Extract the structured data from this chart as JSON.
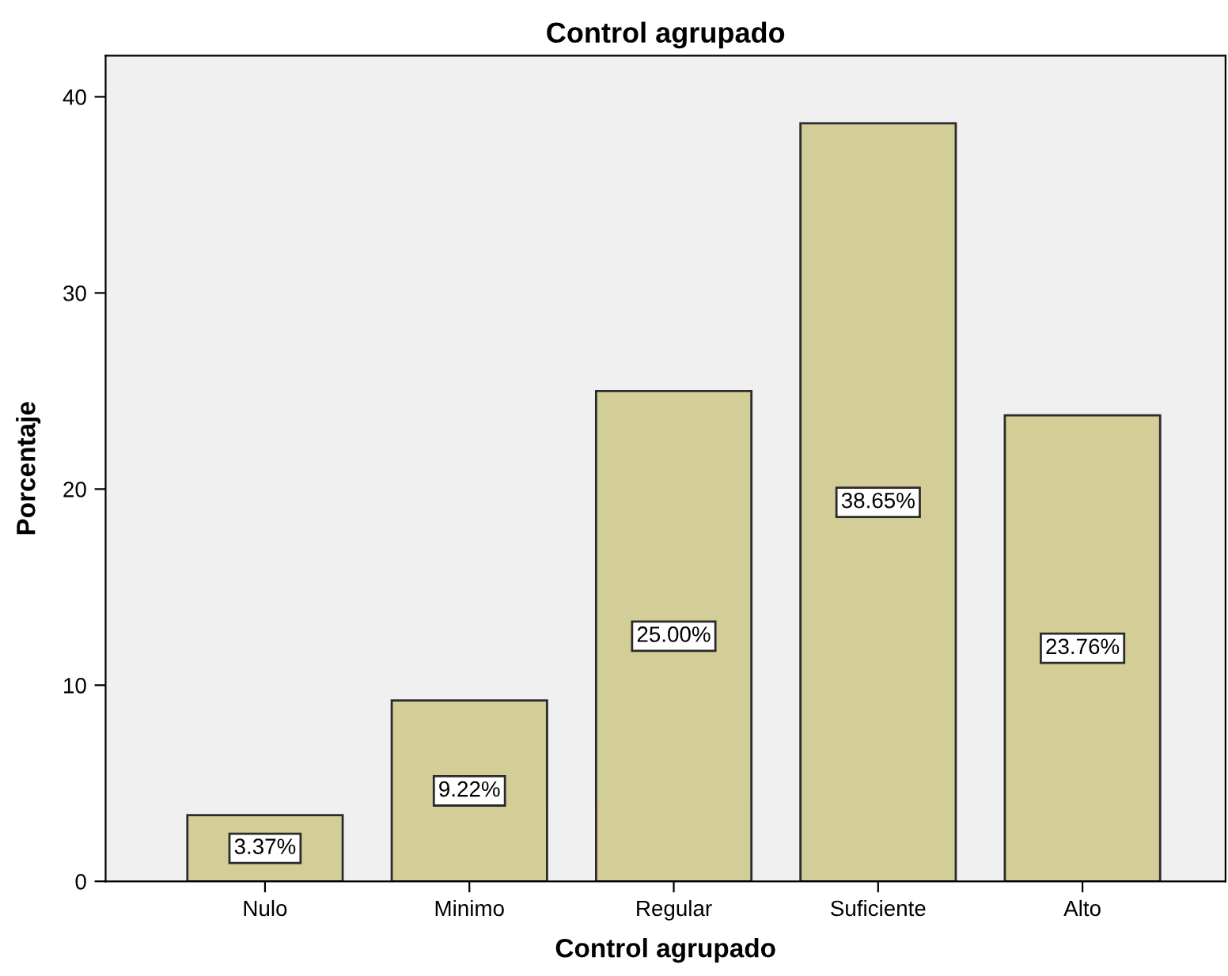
{
  "chart_data": {
    "type": "bar",
    "title": "Control agrupado",
    "xlabel": "Control agrupado",
    "ylabel": "Porcentaje",
    "categories": [
      "Nulo",
      "Minimo",
      "Regular",
      "Suficiente",
      "Alto"
    ],
    "values": [
      3.37,
      9.22,
      25.0,
      38.65,
      23.76
    ],
    "value_labels": [
      "3.37%",
      "9.22%",
      "25.00%",
      "38.65%",
      "23.76%"
    ],
    "color": "#d3ce98",
    "ylim": [
      0,
      42.1
    ],
    "yticks": [
      0,
      10,
      20,
      30,
      40
    ],
    "grid": false
  }
}
